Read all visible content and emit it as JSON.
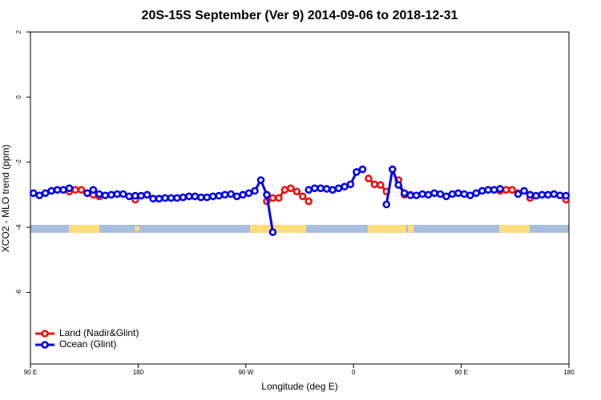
{
  "chart_data": {
    "type": "line",
    "title": "20S-15S September (Ver 9)   2014-09-06 to 2018-12-31",
    "x_label": "Longitude (deg E)",
    "y_label": "XCO2 - MLO trend (ppm)",
    "x": [
      92.5,
      97.5,
      102.5,
      107.5,
      112.5,
      117.5,
      122.5,
      127.5,
      132.5,
      137.5,
      142.5,
      147.5,
      152.5,
      157.5,
      162.5,
      167.5,
      172.5,
      177.5,
      182.5,
      187.5,
      192.5,
      197.5,
      202.5,
      207.5,
      212.5,
      217.5,
      222.5,
      227.5,
      232.5,
      237.5,
      242.5,
      247.5,
      252.5,
      257.5,
      262.5,
      267.5,
      272.5,
      277.5,
      282.5,
      287.5,
      292.5,
      297.5,
      302.5,
      307.5,
      312.5,
      317.5,
      322.5,
      327.5,
      332.5,
      337.5,
      342.5,
      347.5,
      352.5,
      357.5,
      362.5,
      367.5,
      372.5,
      377.5,
      382.5,
      387.5,
      392.5,
      397.5,
      402.5,
      407.5,
      412.5,
      417.5,
      422.5,
      427.5,
      432.5,
      437.5,
      442.5,
      447.5,
      452.5,
      457.5,
      462.5,
      467.5,
      472.5,
      477.5,
      482.5,
      487.5,
      492.5,
      497.5,
      502.5,
      507.5,
      512.5,
      517.5,
      522.5,
      527.5,
      532.5,
      537.5
    ],
    "series": [
      {
        "name": "Land (Nadir&Glint)",
        "color": "#ee1111",
        "values": [
          null,
          null,
          null,
          null,
          null,
          null,
          -2.9,
          -2.85,
          -2.85,
          -2.95,
          -3.0,
          -3.05,
          null,
          null,
          null,
          null,
          null,
          -3.15,
          null,
          null,
          null,
          null,
          null,
          null,
          null,
          null,
          null,
          null,
          null,
          null,
          null,
          null,
          null,
          null,
          null,
          null,
          null,
          null,
          null,
          -3.2,
          -3.1,
          -3.1,
          -2.85,
          -2.8,
          -2.9,
          -3.05,
          -3.2,
          null,
          null,
          null,
          null,
          null,
          null,
          null,
          null,
          null,
          -2.5,
          -2.68,
          -2.7,
          -2.9,
          null,
          -2.55,
          -3.0,
          -3.0,
          null,
          null,
          null,
          null,
          null,
          null,
          null,
          null,
          null,
          null,
          null,
          null,
          null,
          null,
          -2.88,
          -2.85,
          -2.85,
          -2.95,
          null,
          -3.1,
          null,
          null,
          null,
          null,
          null,
          -3.15
        ]
      },
      {
        "name": "Ocean (Glint)",
        "color": "#0000ee",
        "values": [
          -2.95,
          -3.02,
          -2.95,
          -2.88,
          -2.85,
          -2.85,
          -2.8,
          null,
          null,
          -2.95,
          -2.85,
          -2.98,
          -3.02,
          -3.0,
          -2.98,
          -2.98,
          -3.05,
          -3.03,
          -3.03,
          -3.0,
          -3.12,
          -3.12,
          -3.1,
          -3.1,
          -3.1,
          -3.08,
          -3.05,
          -3.05,
          -3.08,
          -3.08,
          -3.05,
          -3.03,
          -3.0,
          -2.98,
          -3.05,
          -3.0,
          -2.95,
          -2.88,
          -2.55,
          -3.0,
          -4.15,
          null,
          null,
          null,
          null,
          null,
          -2.85,
          -2.8,
          -2.8,
          -2.82,
          -2.85,
          -2.8,
          -2.75,
          -2.68,
          -2.3,
          -2.22,
          null,
          null,
          null,
          -3.3,
          -2.22,
          -2.7,
          -2.95,
          -3.02,
          -3.02,
          -2.98,
          -3.0,
          -2.95,
          -2.98,
          -3.05,
          -2.98,
          -2.95,
          -2.98,
          -3.02,
          -2.95,
          -2.88,
          -2.85,
          -2.85,
          -2.82,
          null,
          null,
          -2.98,
          -2.88,
          -3.0,
          -3.03,
          -3.0,
          -3.0,
          -2.98,
          -3.02,
          -3.03
        ]
      }
    ],
    "xlim": [
      90,
      540
    ],
    "xticks": [
      {
        "value": 90,
        "label": "90 E"
      },
      180,
      {
        "value": 270,
        "label": "90 W"
      },
      {
        "value": 360,
        "label": "0"
      },
      {
        "value": 450,
        "label": "90 E"
      },
      {
        "value": 540,
        "label": "180"
      }
    ],
    "ylim": [
      -8.2,
      2
    ],
    "yticks": [
      2,
      0,
      -2,
      -4,
      -6
    ],
    "grid": false,
    "legend": "bottom-left"
  }
}
